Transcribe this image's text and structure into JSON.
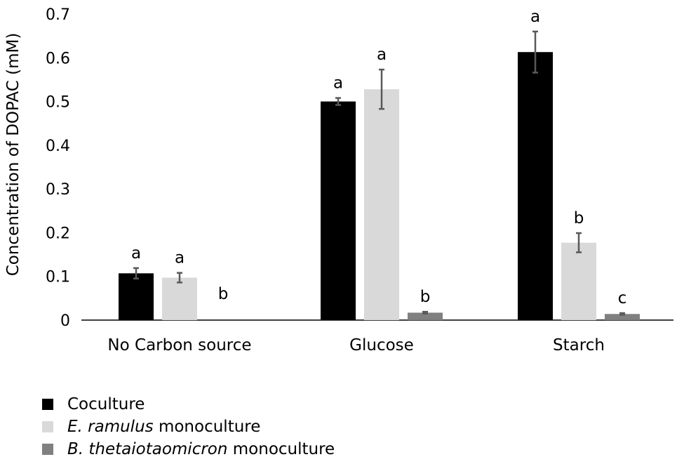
{
  "chart_data": {
    "type": "bar",
    "ylabel": "Concentration of DOPAC (mM)",
    "ylim": [
      0,
      0.7
    ],
    "yticks": [
      "0",
      "0.1",
      "0.2",
      "0.3",
      "0.4",
      "0.5",
      "0.6",
      "0.7"
    ],
    "categories": [
      "No Carbon source",
      "Glucose",
      "Starch"
    ],
    "series": [
      {
        "name": "Coculture",
        "color": "#000000",
        "values": [
          0.107,
          0.5,
          0.613
        ],
        "errors": [
          0.012,
          0.008,
          0.047
        ],
        "letters": [
          "a",
          "a",
          "a"
        ]
      },
      {
        "name": "E. ramulus monoculture",
        "name_italic": "E. ramulus",
        "name_rest": " monoculture",
        "color": "#d9d9d9",
        "values": [
          0.097,
          0.528,
          0.177
        ],
        "errors": [
          0.011,
          0.045,
          0.022
        ],
        "letters": [
          "a",
          "a",
          "b"
        ]
      },
      {
        "name": "B. thetaiotaomicron monoculture",
        "name_italic": "B. thetaiotaomicron",
        "name_rest": " monoculture",
        "color": "#808080",
        "values": [
          0,
          0.017,
          0.014
        ],
        "errors": [
          0,
          0.002,
          0.002
        ],
        "letters": [
          "b",
          "b",
          "c"
        ]
      }
    ],
    "legend_position": "bottom-left",
    "grid": false
  }
}
